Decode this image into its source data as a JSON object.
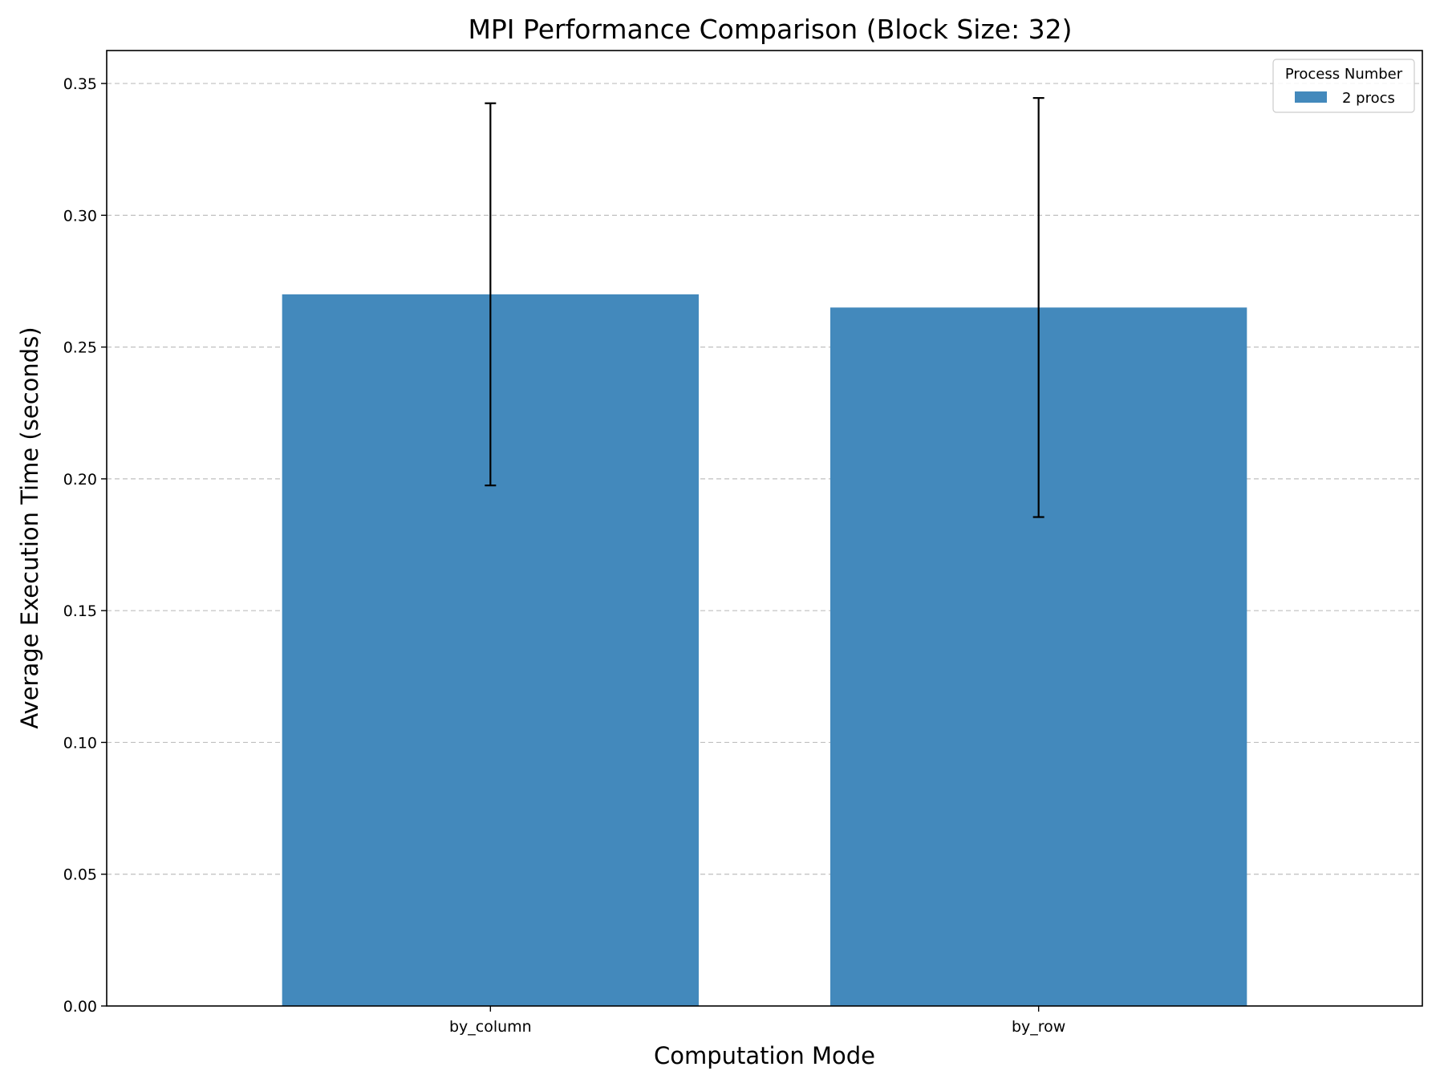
{
  "chart_data": {
    "type": "bar",
    "title": "MPI Performance Comparison (Block Size: 32)",
    "xlabel": "Computation Mode",
    "ylabel": "Average Execution Time (seconds)",
    "categories": [
      "by_column",
      "by_row"
    ],
    "series": [
      {
        "name": "2 procs",
        "values": [
          0.27,
          0.265
        ],
        "error": [
          0.0725,
          0.0795
        ],
        "color": "#4389bc"
      }
    ],
    "ylim": [
      0,
      0.3625
    ],
    "yticks": [
      "0.00",
      "0.05",
      "0.10",
      "0.15",
      "0.20",
      "0.25",
      "0.30",
      "0.35"
    ],
    "grid": "y-dashed",
    "legend": {
      "title": "Process Number",
      "placement": "top-right"
    }
  }
}
